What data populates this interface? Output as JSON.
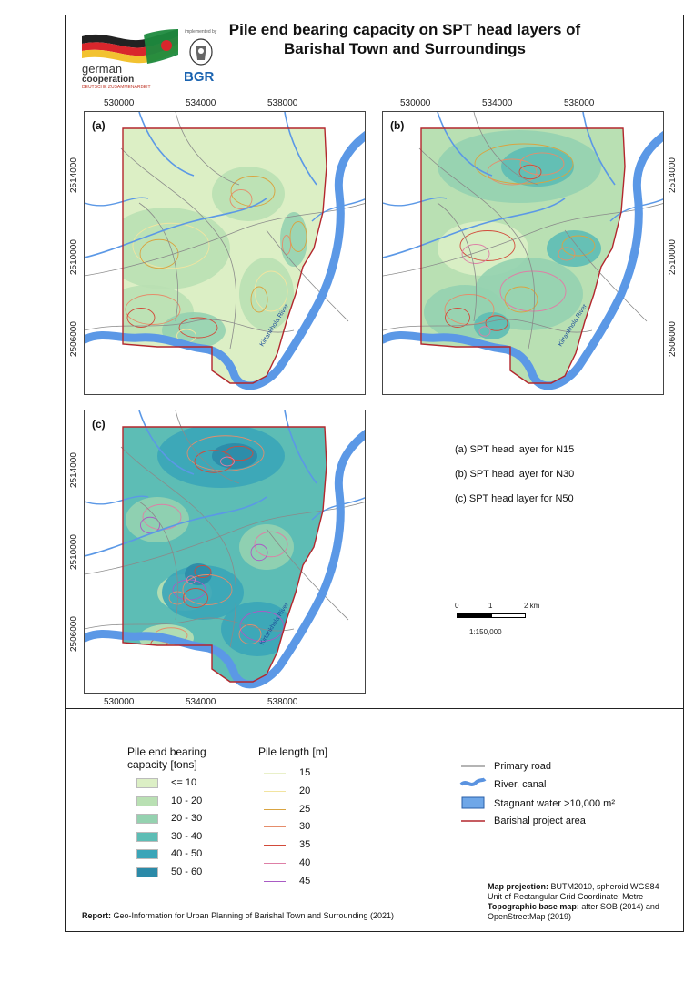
{
  "title": {
    "line1": "Pile end bearing capacity on SPT head layers of",
    "line2": "Barishal Town and Surroundings"
  },
  "logos": {
    "german": "german",
    "cooperation": "cooperation",
    "giz": "DEUTSCHE ZUSAMMENARBEIT",
    "implemented": "implemented by",
    "bgr": "BGR"
  },
  "axes": {
    "x_ticks": [
      "530000",
      "534000",
      "538000"
    ],
    "y_ticks": [
      "2514000",
      "2510000",
      "2506000"
    ]
  },
  "panels": [
    {
      "label": "(a)",
      "river": "Kirtankhola River"
    },
    {
      "label": "(b)",
      "river": "Kirtankhola River"
    },
    {
      "label": "(c)",
      "river": "Kirtankhola River"
    }
  ],
  "descriptions": [
    "(a) SPT head layer for N15",
    "(b) SPT head layer for N30",
    "(c) SPT head layer for N50"
  ],
  "scalebar": {
    "ticks": [
      "0",
      "1",
      "2 km"
    ],
    "ratio": "1:150,000"
  },
  "legend": {
    "capacity_title_1": "Pile end bearing",
    "capacity_title_2": "capacity [tons]",
    "capacity": [
      {
        "label": "<= 10",
        "color": "#dcefc5"
      },
      {
        "label": "10 - 20",
        "color": "#b9e0b3"
      },
      {
        "label": "20 - 30",
        "color": "#95d2b0"
      },
      {
        "label": "30 - 40",
        "color": "#5dbdb5"
      },
      {
        "label": "40 - 50",
        "color": "#3aa5b8"
      },
      {
        "label": "50 - 60",
        "color": "#2b8aa8"
      }
    ],
    "length_title": "Pile length [m]",
    "lengths": [
      {
        "label": "15",
        "color": "#e9f0c9"
      },
      {
        "label": "20",
        "color": "#f2e4a0"
      },
      {
        "label": "25",
        "color": "#d9a441"
      },
      {
        "label": "30",
        "color": "#e58d6b"
      },
      {
        "label": "35",
        "color": "#d24a3a"
      },
      {
        "label": "40",
        "color": "#de7fa6"
      },
      {
        "label": "45",
        "color": "#a95bc4"
      }
    ],
    "features": [
      {
        "label": "Primary road"
      },
      {
        "label": "River, canal"
      },
      {
        "label": "Stagnant water >10,000 m²"
      },
      {
        "label": "Barishal project area"
      }
    ]
  },
  "footer": {
    "report_bold": "Report:",
    "report_text": "Geo-Information for Urban Planning of Barishal Town and Surrounding (2021)",
    "proj_bold": "Map projection:",
    "proj_text": "BUTM2010, spheroid WGS84",
    "unit": "Unit of Rectangular Grid Coordinate: Metre",
    "topo_bold": "Topographic base map:",
    "topo_text": "after SOB (2014) and",
    "osm": "OpenStreetMap (2019)"
  }
}
